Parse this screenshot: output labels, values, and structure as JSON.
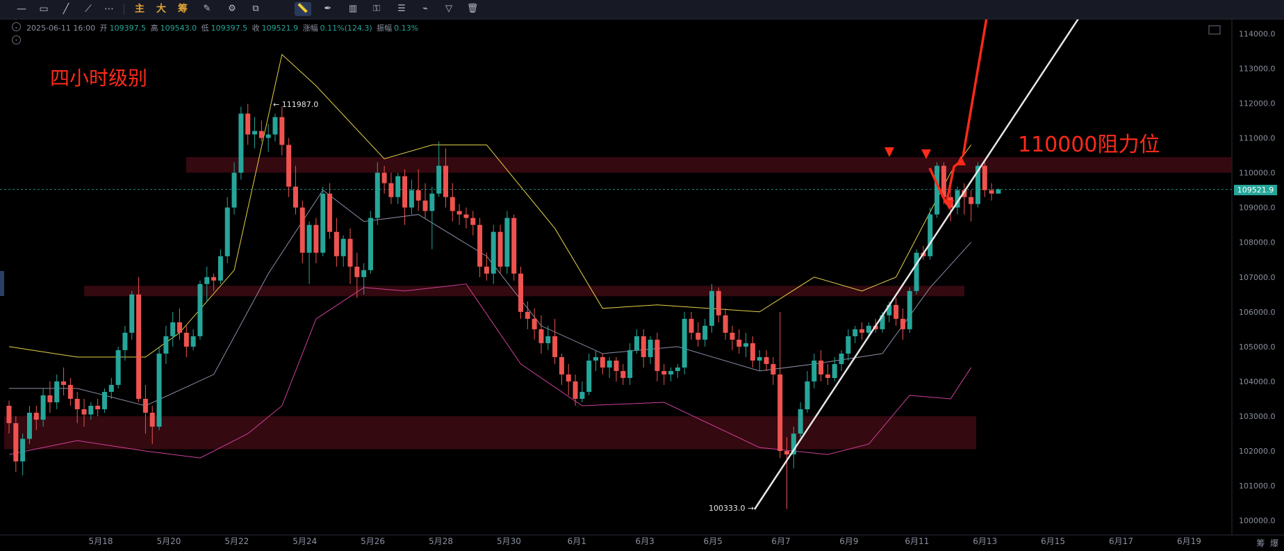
{
  "toolbar": {
    "items": [
      {
        "name": "horizontal-line-icon",
        "glyph": "—"
      },
      {
        "name": "rectangle-icon",
        "glyph": "▭"
      },
      {
        "name": "trend-line-icon",
        "glyph": "╱"
      },
      {
        "name": "ray-icon",
        "glyph": "⟋"
      },
      {
        "name": "more-icon",
        "glyph": "⋯"
      }
    ],
    "text_buttons": [
      "主",
      "大",
      "筹"
    ],
    "tools": [
      {
        "name": "brush-icon",
        "glyph": "✎"
      },
      {
        "name": "settings-icon",
        "glyph": "⚙"
      },
      {
        "name": "select-icon",
        "glyph": "⧉"
      },
      {
        "name": "ruler-icon",
        "glyph": "📏"
      },
      {
        "name": "pen-icon",
        "glyph": "✒"
      },
      {
        "name": "candles-icon",
        "glyph": "▥"
      },
      {
        "name": "lock-icon",
        "glyph": "⚿"
      },
      {
        "name": "note-icon",
        "glyph": "☰"
      },
      {
        "name": "magnet-icon",
        "glyph": "⌁"
      },
      {
        "name": "filter-icon",
        "glyph": "▽"
      },
      {
        "name": "trash-icon",
        "glyph": "🗑"
      }
    ]
  },
  "ohlc": {
    "date": "2025-06-11 16:00",
    "open_label": "开",
    "open": "109397.5",
    "high_label": "高",
    "high": "109543.0",
    "low_label": "低",
    "low": "109397.5",
    "close_label": "收",
    "close": "109521.9",
    "change_label": "涨幅",
    "change": "0.11%(124.3)",
    "amp_label": "振幅",
    "amp": "0.13%"
  },
  "annotations": {
    "level_title": "四小时级别",
    "resistance": "110000阻力位",
    "high_marker": "← 111987.0",
    "low_marker": "100333.0 →",
    "current_price": "109521.9"
  },
  "footer": {
    "right_labels": [
      "筹",
      "爆"
    ]
  },
  "colors": {
    "up": "#26a69a",
    "down": "#ef5350",
    "upper_band": "#e6d34a",
    "mid_band": "#8a8ea8",
    "lower_band": "#d0409a",
    "zone": "#3a0a12",
    "annotation": "#ff2a1a",
    "trendline": "#e8e8e8"
  },
  "chart_data": {
    "type": "candlestick",
    "title": "",
    "yaxis": {
      "ticks": [
        "114000.0",
        "113000.0",
        "112000.0",
        "111000.0",
        "110000.0",
        "109000.0",
        "108000.0",
        "107000.0",
        "106000.0",
        "105000.0",
        "104000.0",
        "103000.0",
        "102000.0",
        "101000.0",
        "100000.0"
      ],
      "range": [
        99830,
        114200
      ]
    },
    "xaxis": {
      "ticks": [
        "5月18",
        "5月20",
        "5月22",
        "5月24",
        "5月26",
        "5月28",
        "5月30",
        "6月1",
        "6月3",
        "6月5",
        "6月7",
        "6月9",
        "6月11",
        "6月13",
        "6月15",
        "6月17",
        "6月19"
      ]
    },
    "zones": [
      {
        "from": 110000,
        "to": 110450,
        "start": "5月21",
        "end": "right-edge"
      },
      {
        "from": 106450,
        "to": 106750,
        "start": "5月17",
        "end": "6月12"
      },
      {
        "from": 102050,
        "to": 103000,
        "start": "5月16",
        "end": "6月12"
      }
    ],
    "current_price": 109521.9,
    "candles": [
      [
        103300,
        103450,
        102500,
        102800
      ],
      [
        102800,
        103000,
        101400,
        101700
      ],
      [
        101700,
        102500,
        101300,
        102350
      ],
      [
        102350,
        103300,
        102200,
        103100
      ],
      [
        103100,
        103300,
        102600,
        102900
      ],
      [
        102900,
        103800,
        102700,
        103600
      ],
      [
        103600,
        104000,
        103100,
        103400
      ],
      [
        103400,
        104200,
        103200,
        104000
      ],
      [
        104000,
        104400,
        103600,
        103900
      ],
      [
        103900,
        104100,
        103300,
        103500
      ],
      [
        103500,
        103700,
        102800,
        103200
      ],
      [
        103200,
        103500,
        102700,
        103050
      ],
      [
        103050,
        103400,
        102900,
        103300
      ],
      [
        103300,
        103500,
        103000,
        103200
      ],
      [
        103200,
        103800,
        103100,
        103700
      ],
      [
        103700,
        104100,
        103500,
        103900
      ],
      [
        103900,
        105000,
        103800,
        104900
      ],
      [
        104900,
        105600,
        104600,
        105400
      ],
      [
        105400,
        106600,
        105200,
        106500
      ],
      [
        106500,
        107000,
        103400,
        103500
      ],
      [
        103500,
        103900,
        102500,
        103100
      ],
      [
        103100,
        103300,
        102200,
        102700
      ],
      [
        102700,
        105000,
        102600,
        104800
      ],
      [
        104800,
        105600,
        104500,
        105300
      ],
      [
        105300,
        106000,
        105000,
        105700
      ],
      [
        105700,
        106100,
        105200,
        105400
      ],
      [
        105400,
        105600,
        104700,
        105000
      ],
      [
        105000,
        105500,
        104900,
        105300
      ],
      [
        105300,
        106900,
        105200,
        106800
      ],
      [
        106800,
        107300,
        106300,
        107000
      ],
      [
        107000,
        107100,
        106600,
        106900
      ],
      [
        106900,
        107800,
        106800,
        107600
      ],
      [
        107600,
        109300,
        107400,
        109000
      ],
      [
        109000,
        110300,
        108800,
        110000
      ],
      [
        110000,
        111900,
        109800,
        111700
      ],
      [
        111700,
        111980,
        110800,
        111100
      ],
      [
        111100,
        111600,
        110700,
        111200
      ],
      [
        111200,
        111500,
        110900,
        111000
      ],
      [
        111000,
        111400,
        110600,
        111100
      ],
      [
        111100,
        111700,
        110900,
        111600
      ],
      [
        111600,
        111900,
        110500,
        110800
      ],
      [
        110800,
        111000,
        109300,
        109600
      ],
      [
        109600,
        110200,
        108800,
        109000
      ],
      [
        109000,
        109200,
        107400,
        107700
      ],
      [
        107700,
        108600,
        106800,
        108500
      ],
      [
        108500,
        108700,
        107400,
        107700
      ],
      [
        107700,
        109600,
        107600,
        109400
      ],
      [
        109400,
        109700,
        108100,
        108300
      ],
      [
        108300,
        108700,
        107300,
        107600
      ],
      [
        107600,
        108200,
        107300,
        108100
      ],
      [
        108100,
        108400,
        106800,
        107300
      ],
      [
        107300,
        107700,
        106400,
        107000
      ],
      [
        107000,
        107400,
        106500,
        107200
      ],
      [
        107200,
        108900,
        107100,
        108700
      ],
      [
        108700,
        110300,
        108500,
        110000
      ],
      [
        110000,
        110200,
        109400,
        109700
      ],
      [
        109700,
        110000,
        109100,
        109300
      ],
      [
        109300,
        110000,
        109100,
        109900
      ],
      [
        109900,
        110100,
        108500,
        109000
      ],
      [
        109000,
        109800,
        108800,
        109500
      ],
      [
        109500,
        110100,
        108900,
        109200
      ],
      [
        109200,
        109700,
        108700,
        108900
      ],
      [
        108900,
        109600,
        107800,
        109400
      ],
      [
        109400,
        110900,
        109300,
        110200
      ],
      [
        110200,
        110700,
        109000,
        109300
      ],
      [
        109300,
        109700,
        108600,
        108900
      ],
      [
        108900,
        109100,
        108500,
        108800
      ],
      [
        108800,
        109000,
        108400,
        108700
      ],
      [
        108700,
        108900,
        108200,
        108500
      ],
      [
        108500,
        108700,
        107000,
        107300
      ],
      [
        107300,
        107700,
        106900,
        107100
      ],
      [
        107100,
        108500,
        106800,
        108300
      ],
      [
        108300,
        108500,
        107100,
        107300
      ],
      [
        107300,
        108900,
        107100,
        108700
      ],
      [
        108700,
        108800,
        106900,
        107100
      ],
      [
        107100,
        107300,
        105800,
        106000
      ],
      [
        106000,
        106300,
        105500,
        105800
      ],
      [
        105800,
        106100,
        105200,
        105500
      ],
      [
        105500,
        105900,
        104800,
        105100
      ],
      [
        105100,
        105600,
        104900,
        105300
      ],
      [
        105300,
        105800,
        104500,
        104700
      ],
      [
        104700,
        104800,
        103900,
        104200
      ],
      [
        104200,
        104500,
        103600,
        104000
      ],
      [
        104000,
        104200,
        103300,
        103500
      ],
      [
        103500,
        104000,
        103400,
        103700
      ],
      [
        103700,
        104800,
        103600,
        104600
      ],
      [
        104600,
        104900,
        104300,
        104700
      ],
      [
        104700,
        104800,
        104200,
        104400
      ],
      [
        104400,
        104700,
        104100,
        104600
      ],
      [
        104600,
        104700,
        104000,
        104300
      ],
      [
        104300,
        104500,
        103900,
        104100
      ],
      [
        104100,
        105100,
        103900,
        104900
      ],
      [
        104900,
        105500,
        104800,
        105300
      ],
      [
        105300,
        105500,
        104400,
        104700
      ],
      [
        104700,
        105300,
        104500,
        105200
      ],
      [
        105200,
        105400,
        104000,
        104300
      ],
      [
        104300,
        104500,
        103900,
        104200
      ],
      [
        104200,
        104400,
        104000,
        104300
      ],
      [
        104300,
        104500,
        104100,
        104400
      ],
      [
        104400,
        106000,
        104200,
        105800
      ],
      [
        105800,
        106000,
        105200,
        105400
      ],
      [
        105400,
        105700,
        105000,
        105200
      ],
      [
        105200,
        105800,
        105000,
        105600
      ],
      [
        105600,
        106800,
        105400,
        106600
      ],
      [
        106600,
        106700,
        105700,
        105900
      ],
      [
        105900,
        106100,
        105200,
        105400
      ],
      [
        105400,
        105600,
        104900,
        105200
      ],
      [
        105200,
        105500,
        104800,
        105000
      ],
      [
        105000,
        105400,
        104700,
        105100
      ],
      [
        105100,
        105300,
        104400,
        104600
      ],
      [
        104600,
        104900,
        104300,
        104700
      ],
      [
        104700,
        104900,
        104300,
        104500
      ],
      [
        104500,
        104700,
        103900,
        104200
      ],
      [
        104200,
        106000,
        101800,
        102000
      ],
      [
        102000,
        102400,
        100333,
        101900
      ],
      [
        101900,
        102700,
        101500,
        102500
      ],
      [
        102500,
        103400,
        102400,
        103200
      ],
      [
        103200,
        104300,
        103100,
        104000
      ],
      [
        104000,
        104800,
        103800,
        104600
      ],
      [
        104600,
        104900,
        104000,
        104200
      ],
      [
        104200,
        104500,
        103900,
        104100
      ],
      [
        104100,
        104700,
        104000,
        104500
      ],
      [
        104500,
        104900,
        104300,
        104800
      ],
      [
        104800,
        105500,
        104600,
        105300
      ],
      [
        105300,
        105600,
        105100,
        105500
      ],
      [
        105500,
        105700,
        105200,
        105400
      ],
      [
        105400,
        105700,
        105300,
        105600
      ],
      [
        105600,
        105800,
        105400,
        105500
      ],
      [
        105500,
        106000,
        105400,
        105900
      ],
      [
        105900,
        106300,
        105700,
        106200
      ],
      [
        106200,
        106400,
        105600,
        105800
      ],
      [
        105800,
        106100,
        105200,
        105500
      ],
      [
        105500,
        106700,
        105400,
        106600
      ],
      [
        106600,
        107800,
        106500,
        107700
      ],
      [
        107700,
        107900,
        107500,
        107600
      ],
      [
        107600,
        109000,
        107500,
        108800
      ],
      [
        108800,
        110300,
        108700,
        110200
      ],
      [
        110200,
        110300,
        109100,
        109300
      ],
      [
        109300,
        109500,
        108600,
        109000
      ],
      [
        109000,
        109600,
        108800,
        109500
      ],
      [
        109500,
        109700,
        108800,
        109300
      ],
      [
        109300,
        109500,
        108600,
        109100
      ],
      [
        109100,
        110300,
        109000,
        110200
      ],
      [
        110200,
        110300,
        109300,
        109500
      ],
      [
        109500,
        109700,
        109200,
        109400
      ],
      [
        109400,
        109550,
        109397,
        109522
      ]
    ],
    "bands": {
      "upper": [
        [
          0,
          105000
        ],
        [
          10,
          104700
        ],
        [
          20,
          104700
        ],
        [
          25,
          105400
        ],
        [
          33,
          107200
        ],
        [
          40,
          113400
        ],
        [
          45,
          112500
        ],
        [
          55,
          110400
        ],
        [
          62,
          110800
        ],
        [
          70,
          110800
        ],
        [
          80,
          108400
        ],
        [
          87,
          106100
        ],
        [
          95,
          106200
        ],
        [
          110,
          106000
        ],
        [
          118,
          107000
        ],
        [
          125,
          106600
        ],
        [
          130,
          107000
        ],
        [
          138,
          110000
        ],
        [
          141,
          110800
        ]
      ],
      "mid": [
        [
          0,
          103800
        ],
        [
          10,
          103800
        ],
        [
          20,
          103300
        ],
        [
          30,
          104200
        ],
        [
          38,
          107100
        ],
        [
          46,
          109500
        ],
        [
          52,
          108600
        ],
        [
          60,
          108800
        ],
        [
          70,
          107600
        ],
        [
          78,
          105600
        ],
        [
          87,
          104800
        ],
        [
          98,
          105000
        ],
        [
          110,
          104300
        ],
        [
          118,
          104500
        ],
        [
          128,
          104800
        ],
        [
          135,
          106700
        ],
        [
          141,
          108000
        ]
      ],
      "lower": [
        [
          0,
          101900
        ],
        [
          10,
          102300
        ],
        [
          20,
          102000
        ],
        [
          28,
          101800
        ],
        [
          35,
          102500
        ],
        [
          40,
          103300
        ],
        [
          45,
          105800
        ],
        [
          52,
          106700
        ],
        [
          58,
          106600
        ],
        [
          67,
          106800
        ],
        [
          75,
          104500
        ],
        [
          84,
          103300
        ],
        [
          96,
          103400
        ],
        [
          110,
          102100
        ],
        [
          120,
          101900
        ],
        [
          126,
          102200
        ],
        [
          132,
          103600
        ],
        [
          138,
          103500
        ],
        [
          141,
          104400
        ]
      ]
    }
  }
}
